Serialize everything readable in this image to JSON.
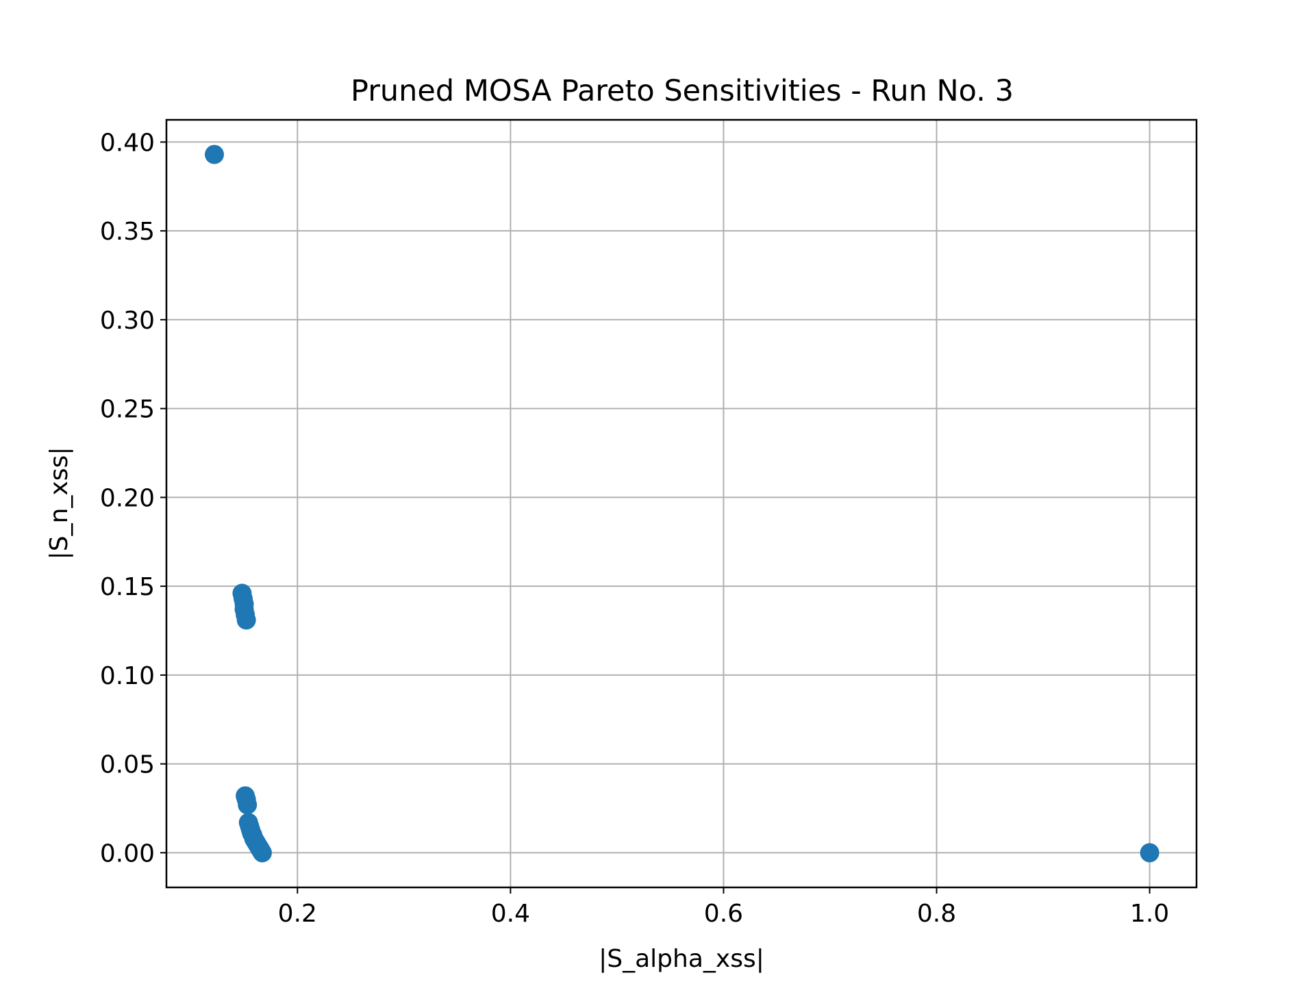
{
  "chart_data": {
    "type": "scatter",
    "title": "Pruned MOSA Pareto Sensitivities - Run No. 3",
    "xlabel": "|S_alpha_xss|",
    "ylabel": "|S_n_xss|",
    "xlim": [
      0.077,
      1.044
    ],
    "ylim": [
      -0.0195,
      0.4125
    ],
    "xticks": [
      0.2,
      0.4,
      0.6,
      0.8,
      1.0
    ],
    "xtick_labels": [
      "0.2",
      "0.4",
      "0.6",
      "0.8",
      "1.0"
    ],
    "yticks": [
      0.0,
      0.05,
      0.1,
      0.15,
      0.2,
      0.25,
      0.3,
      0.35,
      0.4
    ],
    "ytick_labels": [
      "0.00",
      "0.05",
      "0.10",
      "0.15",
      "0.20",
      "0.25",
      "0.30",
      "0.35",
      "0.40"
    ],
    "grid": true,
    "legend": "none",
    "color": "#1f77b4",
    "series": [
      {
        "x": [
          0.122,
          0.148,
          0.149,
          0.15,
          0.15,
          0.151,
          0.152,
          0.151,
          0.152,
          0.153,
          0.154,
          0.155,
          0.156,
          0.157,
          0.158,
          0.159,
          0.16,
          0.161,
          0.162,
          0.163,
          0.164,
          0.165,
          0.166,
          0.167,
          1.0
        ],
        "y": [
          0.393,
          0.146,
          0.143,
          0.14,
          0.137,
          0.134,
          0.131,
          0.032,
          0.03,
          0.027,
          0.017,
          0.015,
          0.013,
          0.011,
          0.01,
          0.008,
          0.007,
          0.006,
          0.005,
          0.004,
          0.003,
          0.002,
          0.001,
          0.0,
          0.0
        ]
      }
    ]
  }
}
